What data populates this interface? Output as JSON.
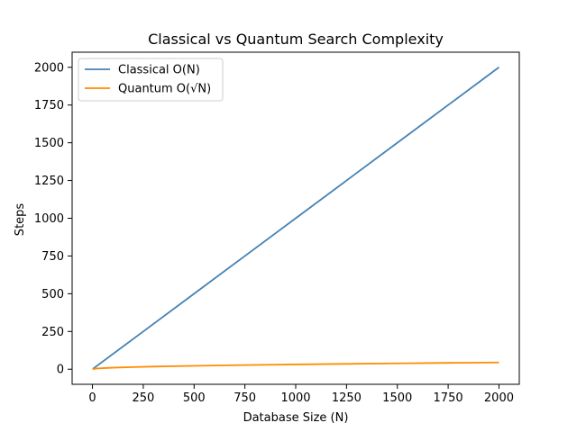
{
  "chart_data": {
    "type": "line",
    "title": "Classical vs Quantum Search Complexity",
    "xlabel": "Database Size (N)",
    "ylabel": "Steps",
    "xlim": [
      -100,
      2100
    ],
    "ylim": [
      -100,
      2100
    ],
    "xticks": [
      0,
      250,
      500,
      750,
      1000,
      1250,
      1500,
      1750,
      2000
    ],
    "yticks": [
      0,
      250,
      500,
      750,
      1000,
      1250,
      1500,
      1750,
      2000
    ],
    "xtick_labels": [
      "0",
      "250",
      "500",
      "750",
      "1000",
      "1250",
      "1500",
      "1750",
      "2000"
    ],
    "ytick_labels": [
      "0",
      "250",
      "500",
      "750",
      "1000",
      "1250",
      "1500",
      "1750",
      "2000"
    ],
    "grid": false,
    "legend_position": "upper-left",
    "series": [
      {
        "name": "Classical O(N)",
        "color": "#4682b4",
        "x": [
          1,
          250,
          500,
          750,
          1000,
          1250,
          1500,
          1750,
          2000
        ],
        "values": [
          1,
          250,
          500,
          750,
          1000,
          1250,
          1500,
          1750,
          2000
        ]
      },
      {
        "name": "Quantum O(√N)",
        "color": "#ff8c00",
        "x": [
          1,
          25,
          50,
          100,
          150,
          200,
          300,
          400,
          500,
          750,
          1000,
          1250,
          1500,
          1750,
          2000
        ],
        "values": [
          1,
          5,
          7.07,
          10,
          12.25,
          14.14,
          17.32,
          20,
          22.36,
          27.39,
          31.62,
          35.36,
          38.73,
          41.83,
          44.72
        ]
      }
    ]
  }
}
